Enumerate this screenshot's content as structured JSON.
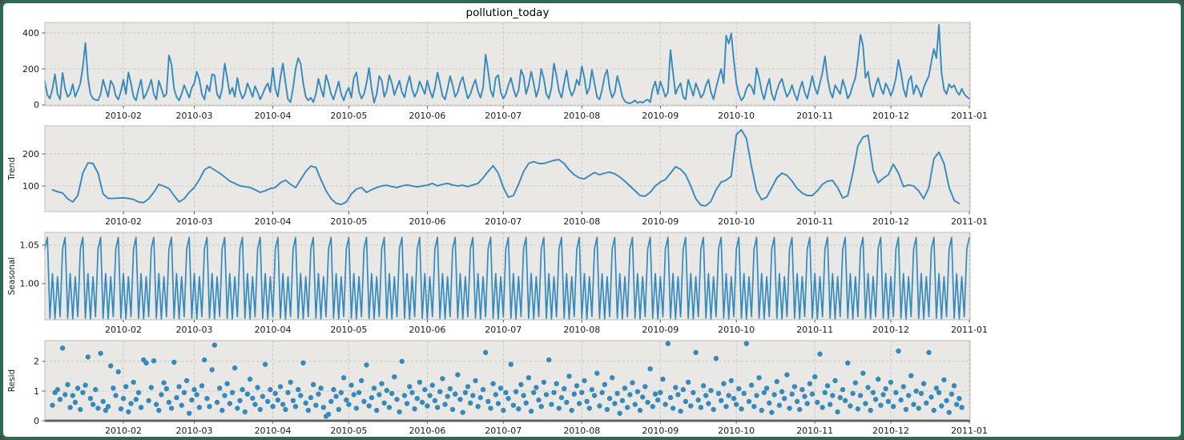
{
  "window": {
    "frame_color": "#2d6b4e",
    "background": "#ffffff"
  },
  "figure": {
    "title": "pollution_today",
    "style": {
      "axes_bg": "#e9e8e5",
      "axes_edge": "#bdbdbd",
      "grid_color": "#c7c7c7",
      "line_color": "#348abd",
      "marker_color": "#348abd",
      "baseline_color": "#000000",
      "tick_label_color": "#1a1a1a"
    },
    "x_axis": {
      "lim": [
        0,
        365.3
      ],
      "ticks": [
        {
          "day": 31,
          "label": "2010-02"
        },
        {
          "day": 59,
          "label": "2010-03"
        },
        {
          "day": 90,
          "label": "2010-04"
        },
        {
          "day": 120,
          "label": "2010-05"
        },
        {
          "day": 151,
          "label": "2010-06"
        },
        {
          "day": 181,
          "label": "2010-07"
        },
        {
          "day": 212,
          "label": "2010-08"
        },
        {
          "day": 243,
          "label": "2010-09"
        },
        {
          "day": 273,
          "label": "2010-10"
        },
        {
          "day": 304,
          "label": "2010-11"
        },
        {
          "day": 334,
          "label": "2010-12"
        },
        {
          "day": 365,
          "label": "2011-01"
        }
      ]
    }
  },
  "chart_data": [
    {
      "id": "observed",
      "type": "line",
      "title": "pollution_today",
      "ylabel": "",
      "ylim": [
        -5,
        458
      ],
      "yticks": [
        {
          "v": 0,
          "l": "0"
        },
        {
          "v": 200,
          "l": "200"
        },
        {
          "v": 400,
          "l": "400"
        }
      ],
      "x_start": 0,
      "x_step": 1,
      "values": [
        130,
        55,
        35,
        90,
        170,
        60,
        30,
        178,
        90,
        45,
        60,
        115,
        45,
        80,
        120,
        210,
        345,
        150,
        60,
        35,
        28,
        25,
        60,
        140,
        90,
        45,
        135,
        110,
        50,
        30,
        75,
        140,
        60,
        180,
        120,
        45,
        25,
        90,
        140,
        35,
        60,
        95,
        140,
        60,
        30,
        135,
        90,
        45,
        60,
        275,
        225,
        90,
        45,
        25,
        60,
        110,
        75,
        40,
        95,
        120,
        185,
        140,
        60,
        30,
        110,
        75,
        170,
        165,
        60,
        35,
        90,
        230,
        150,
        60,
        95,
        45,
        150,
        75,
        35,
        60,
        120,
        85,
        45,
        105,
        70,
        30,
        60,
        95,
        120,
        70,
        205,
        90,
        45,
        150,
        230,
        120,
        30,
        15,
        95,
        200,
        260,
        230,
        120,
        45,
        25,
        40,
        15,
        60,
        145,
        90,
        45,
        165,
        120,
        60,
        30,
        80,
        130,
        60,
        25,
        70,
        95,
        40,
        150,
        180,
        75,
        35,
        60,
        120,
        205,
        90,
        12,
        60,
        160,
        135,
        45,
        80,
        165,
        120,
        55,
        95,
        135,
        70,
        42,
        110,
        160,
        85,
        45,
        75,
        130,
        95,
        60,
        135,
        80,
        40,
        95,
        180,
        120,
        50,
        30,
        90,
        160,
        110,
        45,
        70,
        125,
        155,
        90,
        35,
        60,
        105,
        140,
        75,
        40,
        95,
        280,
        190,
        80,
        45,
        150,
        165,
        70,
        35,
        60,
        110,
        150,
        90,
        45,
        80,
        195,
        160,
        60,
        110,
        185,
        120,
        45,
        90,
        200,
        145,
        60,
        35,
        95,
        230,
        160,
        75,
        40,
        120,
        190,
        95,
        50,
        80,
        140,
        110,
        215,
        150,
        60,
        95,
        195,
        120,
        45,
        30,
        85,
        160,
        195,
        90,
        40,
        70,
        160,
        110,
        45,
        20,
        12,
        8,
        15,
        25,
        10,
        18,
        12,
        22,
        30,
        15,
        90,
        130,
        60,
        130,
        90,
        45,
        70,
        305,
        180,
        60,
        95,
        120,
        45,
        30,
        140,
        95,
        50,
        120,
        85,
        40,
        60,
        110,
        140,
        70,
        30,
        95,
        150,
        200,
        120,
        385,
        340,
        397,
        250,
        120,
        60,
        25,
        45,
        90,
        115,
        100,
        60,
        205,
        150,
        75,
        30,
        95,
        145,
        60,
        25,
        80,
        120,
        145,
        90,
        45,
        70,
        110,
        60,
        25,
        85,
        130,
        70,
        35,
        95,
        160,
        95,
        60,
        120,
        180,
        270,
        150,
        75,
        40,
        110,
        85,
        60,
        140,
        95,
        35,
        60,
        110,
        150,
        250,
        390,
        330,
        150,
        185,
        90,
        45,
        110,
        150,
        95,
        60,
        120,
        90,
        50,
        90,
        150,
        250,
        180,
        90,
        45,
        135,
        160,
        60,
        110,
        85,
        45,
        95,
        130,
        160,
        240,
        310,
        260,
        445,
        180,
        85,
        60,
        115,
        95,
        110,
        75,
        55,
        90,
        60,
        45,
        35
      ]
    },
    {
      "id": "trend",
      "type": "line",
      "ylabel": "Trend",
      "ylim": [
        20,
        287.5
      ],
      "yticks": [
        {
          "v": 100,
          "l": "100"
        },
        {
          "v": 200,
          "l": "200"
        }
      ],
      "x_start": 3,
      "x_step": 2,
      "values": [
        88,
        82,
        78,
        60,
        50,
        70,
        140,
        172,
        170,
        140,
        75,
        61,
        61,
        62,
        63,
        61,
        58,
        50,
        48,
        60,
        80,
        105,
        99,
        92,
        70,
        50,
        60,
        80,
        95,
        120,
        150,
        160,
        150,
        140,
        128,
        115,
        108,
        100,
        98,
        95,
        88,
        80,
        85,
        92,
        95,
        110,
        118,
        105,
        95,
        120,
        145,
        162,
        158,
        120,
        85,
        60,
        46,
        42,
        50,
        75,
        90,
        95,
        80,
        88,
        95,
        100,
        102,
        98,
        95,
        100,
        103,
        100,
        97,
        100,
        102,
        108,
        100,
        105,
        108,
        103,
        100,
        102,
        98,
        103,
        108,
        125,
        145,
        163,
        140,
        95,
        65,
        70,
        105,
        145,
        170,
        176,
        170,
        170,
        175,
        180,
        182,
        170,
        150,
        135,
        125,
        122,
        132,
        142,
        135,
        140,
        143,
        138,
        128,
        115,
        100,
        85,
        70,
        68,
        80,
        100,
        112,
        120,
        140,
        160,
        152,
        135,
        100,
        60,
        40,
        38,
        52,
        88,
        112,
        118,
        130,
        260,
        275,
        248,
        160,
        85,
        57,
        65,
        95,
        125,
        140,
        133,
        115,
        92,
        78,
        70,
        70,
        85,
        105,
        115,
        117,
        95,
        62,
        70,
        140,
        225,
        252,
        258,
        150,
        110,
        124,
        135,
        168,
        140,
        98,
        103,
        100,
        85,
        60,
        95,
        185,
        205,
        170,
        95,
        55,
        45
      ]
    },
    {
      "id": "seasonal",
      "type": "line",
      "ylabel": "Seasonal",
      "ylim": [
        0.953,
        1.0665
      ],
      "yticks": [
        {
          "v": 1.0,
          "l": "1.00"
        },
        {
          "v": 1.05,
          "l": "1.05"
        }
      ],
      "x_start": 0,
      "x_step": 1,
      "pattern": [
        1.045,
        1.06,
        0.955,
        1.013,
        0.954,
        1.009,
        0.957
      ],
      "length": 366
    },
    {
      "id": "resid",
      "type": "scatter",
      "ylabel": "Resid",
      "ylim": [
        0,
        2.7
      ],
      "yticks": [
        {
          "v": 0,
          "l": "0"
        },
        {
          "v": 1,
          "l": "1"
        },
        {
          "v": 2,
          "l": "2"
        }
      ],
      "hline": 0,
      "x_start": 3,
      "x_step": 1,
      "values": [
        0.52,
        0.95,
        1.05,
        0.72,
        2.45,
        0.88,
        1.22,
        0.45,
        0.85,
        0.62,
        1.1,
        0.38,
        0.95,
        1.2,
        2.15,
        0.75,
        0.55,
        1.05,
        0.42,
        2.27,
        0.65,
        0.35,
        0.48,
        1.85,
        1.1,
        0.85,
        1.65,
        0.4,
        0.75,
        1.15,
        0.3,
        0.58,
        1.3,
        0.72,
        0.95,
        0.45,
        2.05,
        1.95,
        0.68,
        1.12,
        2.02,
        0.55,
        0.35,
        0.88,
        1.28,
        1.08,
        0.62,
        0.42,
        1.97,
        0.78,
        1.15,
        0.52,
        0.95,
        1.35,
        0.25,
        0.7,
        1.05,
        0.88,
        0.45,
        1.18,
        2.05,
        0.75,
        0.48,
        1.72,
        2.55,
        0.62,
        1.1,
        0.35,
        0.85,
        1.25,
        0.58,
        0.95,
        1.78,
        0.42,
        0.68,
        1.05,
        0.3,
        0.9,
        1.4,
        0.76,
        0.55,
        1.12,
        0.38,
        0.82,
        1.9,
        0.65,
        1.05,
        0.48,
        0.92,
        0.7,
        1.15,
        0.55,
        0.38,
        0.95,
        1.3,
        0.68,
        0.48,
        1.05,
        0.85,
        1.95,
        0.6,
        0.35,
        0.78,
        1.22,
        0.52,
        0.9,
        1.1,
        0.45,
        0.15,
        0.22,
        0.65,
        1.05,
        0.82,
        0.38,
        0.95,
        1.45,
        0.7,
        0.55,
        1.2,
        0.88,
        0.42,
        0.95,
        1.35,
        0.65,
        1.88,
        0.5,
        0.78,
        1.1,
        0.35,
        0.88,
        1.25,
        0.6,
        1.02,
        0.45,
        0.92,
        1.48,
        0.72,
        0.3,
        2.0,
        0.85,
        0.58,
        1.15,
        0.95,
        0.4,
        0.75,
        1.3,
        0.62,
        1.05,
        0.5,
        0.85,
        1.2,
        0.68,
        0.45,
        0.98,
        1.42,
        0.55,
        0.82,
        1.08,
        0.38,
        0.9,
        1.55,
        0.72,
        0.28,
        0.95,
        1.15,
        0.6,
        0.85,
        1.35,
        0.48,
        0.78,
        1.05,
        2.3,
        0.65,
        0.42,
        1.25,
        0.88,
        0.58,
        1.1,
        0.35,
        0.95,
        0.75,
        1.9,
        0.52,
        0.98,
        0.4,
        1.22,
        0.85,
        0.6,
        1.45,
        0.32,
        0.95,
        1.12,
        0.7,
        0.48,
        1.3,
        0.88,
        2.05,
        0.55,
        0.95,
        1.25,
        0.42,
        0.78,
        1.08,
        0.62,
        1.5,
        0.35,
        0.9,
        1.18,
        0.58,
        0.95,
        1.35,
        0.65,
        0.42,
        1.05,
        0.85,
        1.6,
        0.5,
        0.95,
        1.22,
        0.38,
        0.75,
        1.45,
        0.58,
        0.92,
        0.25,
        0.68,
        1.1,
        0.45,
        0.88,
        1.28,
        0.55,
        0.98,
        0.35,
        0.8,
        1.15,
        0.62,
        1.75,
        0.48,
        0.9,
        0.7,
        0.95,
        1.4,
        0.55,
        2.6,
        0.78,
        0.42,
        1.12,
        0.88,
        0.32,
        1.05,
        0.65,
        1.3,
        0.5,
        0.95,
        2.3,
        0.7,
        0.45,
        1.18,
        0.85,
        0.58,
        1.02,
        0.38,
        2.1,
        0.92,
        0.68,
        1.25,
        0.48,
        0.85,
        1.35,
        0.75,
        0.55,
        1.08,
        0.4,
        0.92,
        2.6,
        0.65,
        1.2,
        0.48,
        0.85,
        1.45,
        0.35,
        0.95,
        1.1,
        0.6,
        0.28,
        0.88,
        1.32,
        0.52,
        0.98,
        0.75,
        1.55,
        0.42,
        0.9,
        1.15,
        0.65,
        0.38,
        1.05,
        0.82,
        0.58,
        1.25,
        0.9,
        1.48,
        0.62,
        2.25,
        0.45,
        0.95,
        1.18,
        0.55,
        0.85,
        1.35,
        0.3,
        0.78,
        1.05,
        0.68,
        1.95,
        0.5,
        0.92,
        1.28,
        0.4,
        0.85,
        1.6,
        0.58,
        1.12,
        0.35,
        0.95,
        0.72,
        1.4,
        0.52,
        0.88,
        1.08,
        0.65,
        1.3,
        0.48,
        0.95,
        2.35,
        0.7,
        1.15,
        0.38,
        0.85,
        1.52,
        0.55,
        1.0,
        0.42,
        0.92,
        1.25,
        0.6,
        2.3,
        0.8,
        0.35,
        1.1,
        0.95,
        0.5,
        1.38,
        0.68,
        0.28,
        0.9,
        1.18,
        0.55,
        0.75,
        0.45
      ]
    }
  ]
}
